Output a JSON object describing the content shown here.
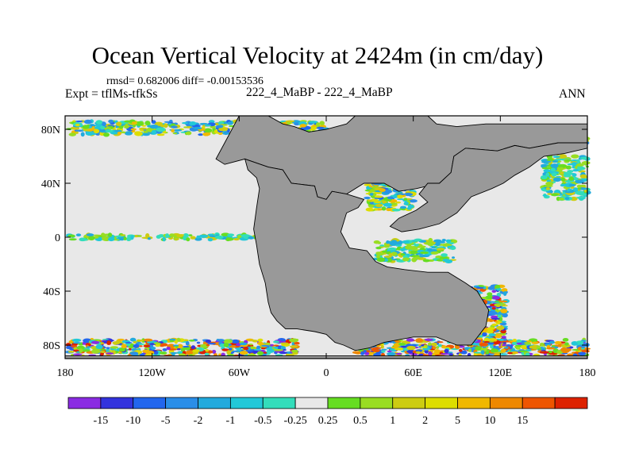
{
  "figure": {
    "title": "Ocean Vertical Velocity at 2424m (in cm/day)",
    "stats": "rmsd= 0.682006  diff= -0.00153536",
    "expt_label": "Expt = tflMs-tfkSs",
    "center_label": "222_4_MaBP - 222_4_MaBP",
    "season": "ANN"
  },
  "map": {
    "projection": "cylindrical-equidistant",
    "lon_range": [
      -180,
      180
    ],
    "lat_range": [
      -90,
      90
    ],
    "land_color": "#999999",
    "ocean_near_zero_color": "#e8e8e8",
    "x_ticks": [
      {
        "value": -180,
        "label": "180"
      },
      {
        "value": -120,
        "label": "120W"
      },
      {
        "value": -60,
        "label": "60W"
      },
      {
        "value": 0,
        "label": "0"
      },
      {
        "value": 60,
        "label": "60E"
      },
      {
        "value": 120,
        "label": "120E"
      },
      {
        "value": 180,
        "label": "180"
      }
    ],
    "y_ticks": [
      {
        "value": 80,
        "label": "80N"
      },
      {
        "value": 40,
        "label": "40N"
      },
      {
        "value": 0,
        "label": "0"
      },
      {
        "value": -40,
        "label": "40S"
      },
      {
        "value": -80,
        "label": "80S"
      }
    ],
    "land_regions": [
      {
        "name": "western-supercontinent",
        "lonlat": [
          [
            -60,
            90
          ],
          [
            -40,
            90
          ],
          [
            -30,
            84
          ],
          [
            -22,
            82
          ],
          [
            -12,
            78
          ],
          [
            0,
            80
          ],
          [
            14,
            84
          ],
          [
            20,
            90
          ],
          [
            70,
            90
          ],
          [
            76,
            84
          ],
          [
            90,
            82
          ],
          [
            110,
            84
          ],
          [
            130,
            84
          ],
          [
            180,
            84
          ],
          [
            180,
            70
          ],
          [
            160,
            70
          ],
          [
            140,
            66
          ],
          [
            130,
            68
          ],
          [
            118,
            64
          ],
          [
            96,
            66
          ],
          [
            88,
            60
          ],
          [
            86,
            48
          ],
          [
            78,
            40
          ],
          [
            62,
            36
          ],
          [
            50,
            34
          ],
          [
            40,
            40
          ],
          [
            26,
            40
          ],
          [
            14,
            32
          ],
          [
            4,
            34
          ],
          [
            0,
            28
          ],
          [
            -6,
            30
          ],
          [
            -8,
            38
          ],
          [
            -24,
            40
          ],
          [
            -30,
            50
          ],
          [
            -40,
            52
          ],
          [
            -56,
            58
          ],
          [
            -70,
            54
          ],
          [
            -76,
            58
          ],
          [
            -70,
            70
          ],
          [
            -66,
            78
          ],
          [
            -60,
            90
          ]
        ]
      },
      {
        "name": "southern-landmass",
        "lonlat": [
          [
            -56,
            58
          ],
          [
            -54,
            50
          ],
          [
            -48,
            44
          ],
          [
            -46,
            36
          ],
          [
            -48,
            22
          ],
          [
            -50,
            6
          ],
          [
            -48,
            -6
          ],
          [
            -46,
            -20
          ],
          [
            -42,
            -34
          ],
          [
            -40,
            -48
          ],
          [
            -38,
            -56
          ],
          [
            -34,
            -62
          ],
          [
            -28,
            -68
          ],
          [
            -20,
            -68
          ],
          [
            -8,
            -70
          ],
          [
            0,
            -72
          ],
          [
            6,
            -78
          ],
          [
            12,
            -80
          ],
          [
            20,
            -84
          ],
          [
            30,
            -82
          ],
          [
            40,
            -78
          ],
          [
            60,
            -74
          ],
          [
            76,
            -74
          ],
          [
            90,
            -80
          ],
          [
            100,
            -80
          ],
          [
            110,
            -66
          ],
          [
            112,
            -54
          ],
          [
            104,
            -40
          ],
          [
            96,
            -34
          ],
          [
            84,
            -26
          ],
          [
            70,
            -26
          ],
          [
            54,
            -24
          ],
          [
            42,
            -22
          ],
          [
            34,
            -18
          ],
          [
            28,
            -10
          ],
          [
            16,
            -8
          ],
          [
            10,
            4
          ],
          [
            14,
            18
          ],
          [
            22,
            22
          ],
          [
            26,
            28
          ],
          [
            14,
            32
          ],
          [
            4,
            34
          ],
          [
            0,
            28
          ],
          [
            -6,
            30
          ],
          [
            -8,
            38
          ],
          [
            -24,
            40
          ],
          [
            -30,
            50
          ],
          [
            -40,
            52
          ],
          [
            -56,
            58
          ]
        ]
      },
      {
        "name": "east-asia-block",
        "lonlat": [
          [
            70,
            40
          ],
          [
            78,
            40
          ],
          [
            86,
            48
          ],
          [
            88,
            60
          ],
          [
            96,
            66
          ],
          [
            118,
            64
          ],
          [
            130,
            68
          ],
          [
            140,
            66
          ],
          [
            160,
            70
          ],
          [
            180,
            70
          ],
          [
            180,
            66
          ],
          [
            164,
            62
          ],
          [
            150,
            60
          ],
          [
            140,
            52
          ],
          [
            130,
            46
          ],
          [
            122,
            40
          ],
          [
            114,
            36
          ],
          [
            100,
            30
          ],
          [
            90,
            18
          ],
          [
            78,
            10
          ],
          [
            64,
            6
          ],
          [
            52,
            4
          ],
          [
            44,
            8
          ],
          [
            50,
            14
          ],
          [
            62,
            20
          ],
          [
            70,
            26
          ],
          [
            64,
            32
          ],
          [
            70,
            40
          ]
        ]
      },
      {
        "name": "south-pole-cap",
        "lonlat": [
          [
            -180,
            -88
          ],
          [
            180,
            -88
          ],
          [
            180,
            -90
          ],
          [
            -180,
            -90
          ]
        ]
      }
    ],
    "anomaly_bands": [
      {
        "lon": [
          -178,
          -20
        ],
        "lat": [
          -88,
          -76
        ],
        "mix": "mixed-high"
      },
      {
        "lon": [
          20,
          180
        ],
        "lat": [
          -88,
          -76
        ],
        "mix": "mixed-high"
      },
      {
        "lon": [
          -178,
          -60
        ],
        "lat": [
          76,
          86
        ],
        "mix": "mixed-mid"
      },
      {
        "lon": [
          -40,
          0
        ],
        "lat": [
          78,
          86
        ],
        "mix": "mixed-mid"
      },
      {
        "lon": [
          108,
          180
        ],
        "lat": [
          66,
          76
        ],
        "mix": "mixed-mid"
      },
      {
        "lon": [
          -178,
          -30
        ],
        "lat": [
          -2,
          2
        ],
        "mix": "mixed-low"
      },
      {
        "lon": [
          28,
          60
        ],
        "lat": [
          20,
          42
        ],
        "mix": "mixed-mid"
      },
      {
        "lon": [
          34,
          88
        ],
        "lat": [
          -18,
          -2
        ],
        "mix": "mixed-low"
      },
      {
        "lon": [
          92,
          124
        ],
        "lat": [
          -80,
          -36
        ],
        "mix": "mixed-high"
      },
      {
        "lon": [
          150,
          180
        ],
        "lat": [
          28,
          60
        ],
        "mix": "mixed-low"
      }
    ]
  },
  "colorbar": {
    "colors": [
      "#8a2be2",
      "#3333dd",
      "#2266ee",
      "#2a8ee8",
      "#22aadd",
      "#22c8d8",
      "#33ddbb",
      "#e8e8e8",
      "#66dd22",
      "#99dd22",
      "#cccc11",
      "#dddd00",
      "#f0b800",
      "#ee8800",
      "#ee5500",
      "#dd2200"
    ],
    "labels": [
      "-15",
      "-10",
      "-5",
      "-2",
      "-1",
      "-0.5",
      "-0.25",
      "0.25",
      "0.5",
      "1",
      "2",
      "5",
      "10",
      "15"
    ]
  }
}
